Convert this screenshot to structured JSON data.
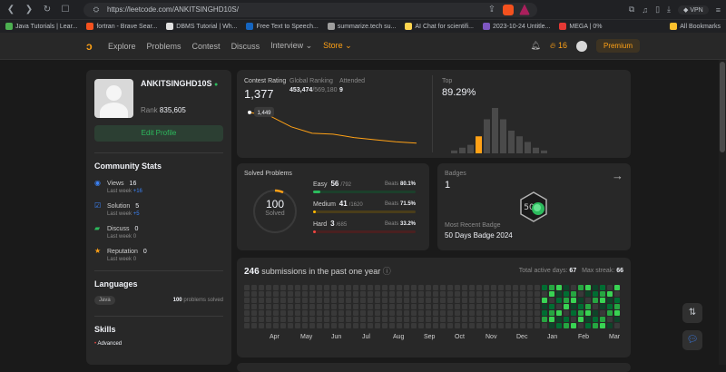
{
  "browser": {
    "url": "https://leetcode.com/ANKITSINGHD10S/",
    "vpn_label": "VPN",
    "bookmarks": [
      {
        "label": "Java Tutorials | Lear...",
        "color": "#4caf50"
      },
      {
        "label": "fortran - Brave Sear...",
        "color": "#f4511e"
      },
      {
        "label": "DBMS Tutorial | Wh...",
        "color": "#e0e0e0"
      },
      {
        "label": "Free Text to Speech...",
        "color": "#1565c0"
      },
      {
        "label": "summarize.tech su...",
        "color": "#9e9e9e"
      },
      {
        "label": "AI Chat for scientifi...",
        "color": "#ffd54f"
      },
      {
        "label": "2023-10-24 Untitle...",
        "color": "#7e57c2"
      },
      {
        "label": "MEGA | 0%",
        "color": "#e53935"
      }
    ],
    "all_bookmarks": "All Bookmarks"
  },
  "nav": {
    "items": [
      "Explore",
      "Problems",
      "Contest",
      "Discuss",
      "Interview ⌄",
      "Store ⌄"
    ],
    "streak": "16",
    "premium": "Premium"
  },
  "profile": {
    "username": "ANKITSINGHD10S",
    "rank_label": "Rank",
    "rank": "835,605",
    "edit_profile": "Edit Profile",
    "community_title": "Community Stats",
    "stats": [
      {
        "label": "Views",
        "value": "16",
        "lw_label": "Last week",
        "lw": "+16",
        "lw_color": "#3b82f6",
        "icon": "eye-icon",
        "color": "#3b82f6"
      },
      {
        "label": "Solution",
        "value": "5",
        "lw_label": "Last week",
        "lw": "+5",
        "lw_color": "#3b82f6",
        "icon": "check-icon",
        "color": "#3b82f6"
      },
      {
        "label": "Discuss",
        "value": "0",
        "lw_label": "Last week",
        "lw": "0",
        "lw_color": "#8a8a8a",
        "icon": "chat-icon",
        "color": "#2cbb5d"
      },
      {
        "label": "Reputation",
        "value": "0",
        "lw_label": "Last week",
        "lw": "0",
        "lw_color": "#8a8a8a",
        "icon": "star-icon",
        "color": "#ffa116"
      }
    ],
    "languages_title": "Languages",
    "language": {
      "name": "Java",
      "count": "100",
      "suffix": "problems solved"
    },
    "skills_title": "Skills",
    "skill_level": "Advanced"
  },
  "contest": {
    "rating_label": "Contest Rating",
    "rating": "1,377",
    "global_label": "Global Ranking",
    "global_rank": "453,474",
    "global_total": "/569,180",
    "attended_label": "Attended",
    "attended": "9",
    "tooltip": "1,449",
    "top_label": "Top",
    "top_value": "89.29%",
    "line_points": [
      1449,
      1440,
      1415,
      1400,
      1398,
      1390,
      1385,
      1380,
      1377
    ],
    "hist_values": [
      1,
      2,
      3,
      6,
      12,
      16,
      12,
      8,
      6,
      4,
      2,
      1
    ],
    "hist_highlight": 3
  },
  "solved": {
    "title": "Solved Problems",
    "total": "100",
    "total_label": "Solved",
    "rows": [
      {
        "name": "Easy",
        "solved": "56",
        "total": "/792",
        "beats_label": "Beats",
        "beats": "80.1%",
        "color": "#2cbb5d",
        "track": "#1c3f2b",
        "fraction": 0.071
      },
      {
        "name": "Medium",
        "solved": "41",
        "total": "/1620",
        "beats_label": "Beats",
        "beats": "71.5%",
        "color": "#ffb800",
        "track": "#4a3d1a",
        "fraction": 0.025
      },
      {
        "name": "Hard",
        "solved": "3",
        "total": "/685",
        "beats_label": "Beats",
        "beats": "33.2%",
        "color": "#ef4743",
        "track": "#4a2020",
        "fraction": 0.004
      }
    ]
  },
  "badges": {
    "title": "Badges",
    "count": "1",
    "recent_label": "Most Recent Badge",
    "recent_name": "50 Days Badge 2024",
    "badge_text": "50"
  },
  "submissions": {
    "count": "246",
    "label": "submissions in the past one year",
    "active_label": "Total active days:",
    "active": "67",
    "streak_label": "Max streak:",
    "streak": "66",
    "months": [
      "Apr",
      "May",
      "Jun",
      "Jul",
      "Aug",
      "Sep",
      "Oct",
      "Nov",
      "Dec",
      "Jan",
      "Feb",
      "Mar"
    ]
  }
}
